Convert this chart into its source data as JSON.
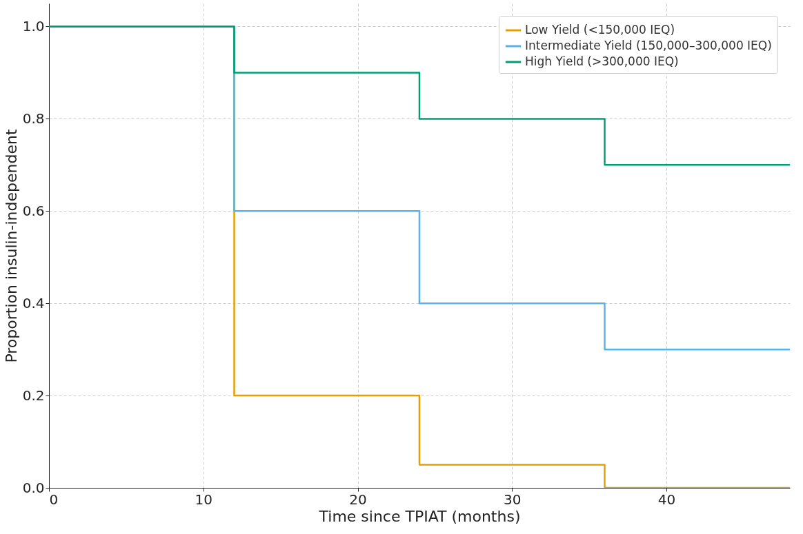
{
  "chart_data": {
    "type": "step",
    "xlabel": "Time since TPIAT (months)",
    "ylabel": "Proportion insulin-independent",
    "x": [
      0,
      12,
      24,
      36,
      48
    ],
    "series": [
      {
        "name": "Low Yield (<150,000 IEQ)",
        "color": "#e69f00",
        "values": [
          1.0,
          0.2,
          0.05,
          0.0,
          0.0
        ]
      },
      {
        "name": "Intermediate Yield (150,000–300,000 IEQ)",
        "color": "#56b4e9",
        "values": [
          1.0,
          0.6,
          0.4,
          0.3,
          0.3
        ]
      },
      {
        "name": "High Yield (>300,000 IEQ)",
        "color": "#009e73",
        "values": [
          1.0,
          0.9,
          0.8,
          0.7,
          0.7
        ]
      }
    ],
    "xlim": [
      0,
      48
    ],
    "xticks": [
      0,
      10,
      20,
      30,
      40
    ],
    "ylim": [
      0,
      1.05
    ],
    "yticks": [
      {
        "value": 0,
        "label": "0.0"
      },
      {
        "value": 0.2,
        "label": "0.2"
      },
      {
        "value": 0.4,
        "label": "0.4"
      },
      {
        "value": 0.6,
        "label": "0.6"
      },
      {
        "value": 0.8,
        "label": "0.8"
      },
      {
        "value": 1.0,
        "label": "1.0"
      }
    ],
    "grid": true,
    "legend": "top right",
    "line_style": "solid",
    "marker": "none"
  }
}
